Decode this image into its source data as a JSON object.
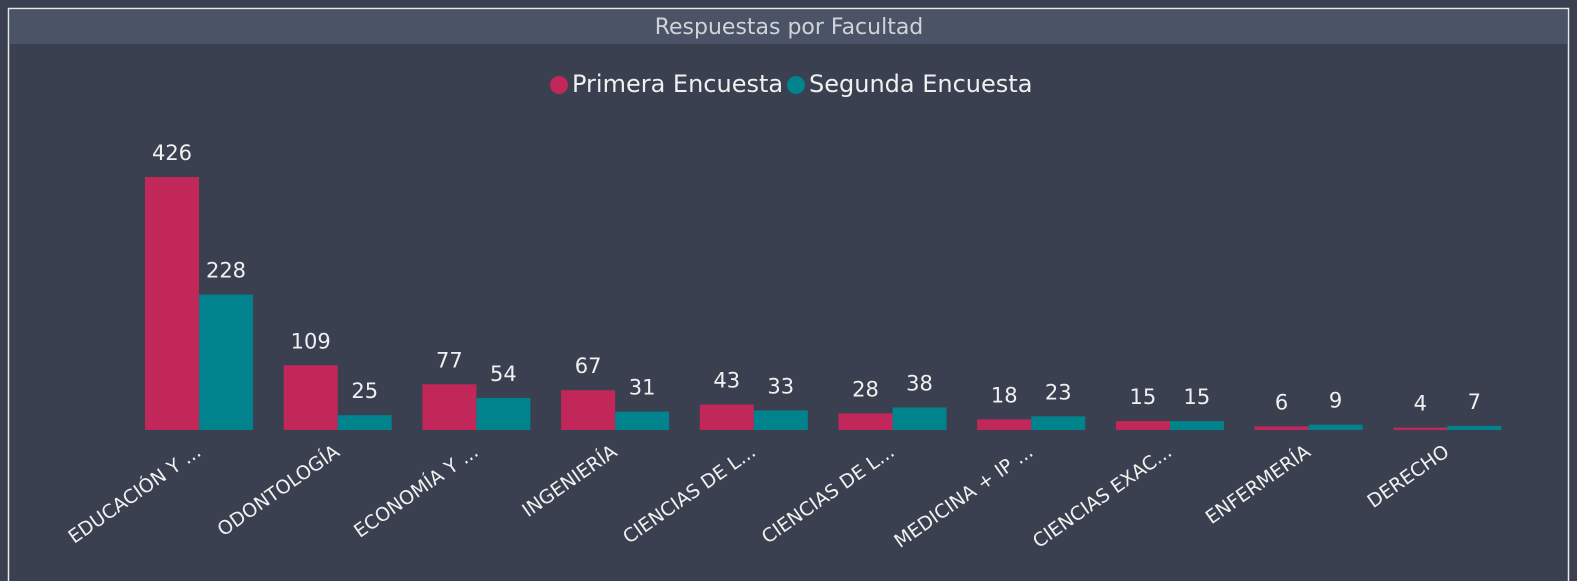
{
  "chart_data": {
    "type": "bar",
    "title": "Respuestas por Facultad",
    "categories": [
      "EDUCACIÓN Y ...",
      "ODONTOLOGÍA",
      "ECONOMÍA Y ...",
      "INGENIERÍA",
      "CIENCIAS DE L...",
      "CIENCIAS DE L...",
      "MEDICINA + IP ...",
      "CIENCIAS EXAC...",
      "ENFERMERÍA",
      "DERECHO"
    ],
    "series": [
      {
        "name": "Primera Encuesta",
        "color": "#c2275a",
        "values": [
          426,
          109,
          77,
          67,
          43,
          28,
          18,
          15,
          6,
          4
        ]
      },
      {
        "name": "Segunda Encuesta",
        "color": "#00838c",
        "values": [
          228,
          25,
          54,
          31,
          33,
          38,
          23,
          15,
          9,
          7
        ]
      }
    ]
  }
}
